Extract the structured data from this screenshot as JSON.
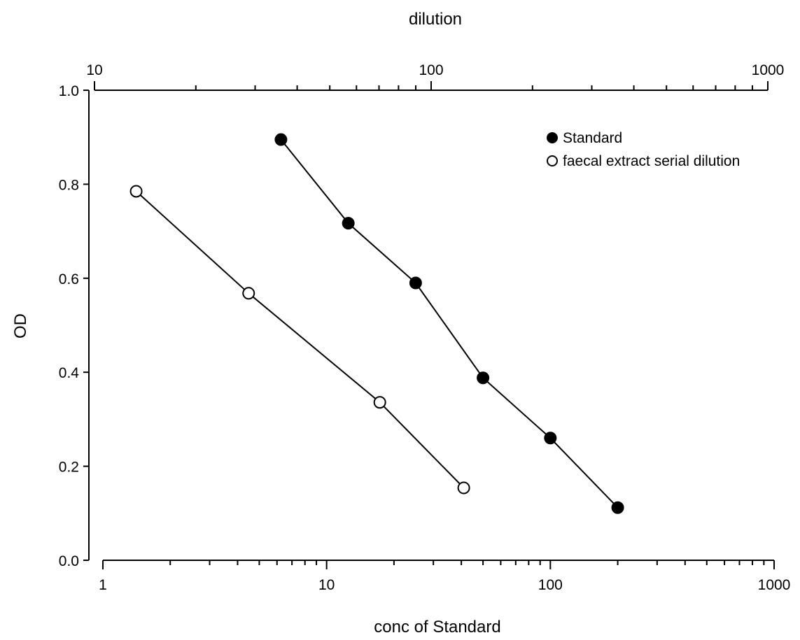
{
  "chart_data": {
    "type": "scatter",
    "title": "",
    "xlabel": "conc of Standard",
    "x2label": "dilution",
    "ylabel": "OD",
    "xscale": "log",
    "x2scale": "log",
    "xlim": [
      1,
      1000
    ],
    "x2lim": [
      10,
      1000
    ],
    "ylim": [
      0,
      1.0
    ],
    "xticks": [
      "1",
      "10",
      "100",
      "1000"
    ],
    "x2ticks": [
      "10",
      "100",
      "1000"
    ],
    "yticks": [
      "0.0",
      "0.2",
      "0.4",
      "0.6",
      "0.8",
      "1.0"
    ],
    "grid": false,
    "legend_position": "top-right",
    "series": [
      {
        "name": "Standard",
        "axis": "bottom",
        "marker": "filled-circle",
        "color": "#000000",
        "x": [
          6.25,
          12.5,
          25,
          50,
          100,
          200
        ],
        "y": [
          0.895,
          0.717,
          0.59,
          0.388,
          0.26,
          0.112
        ]
      },
      {
        "name": "faecal extract serial dilution",
        "axis": "top",
        "marker": "open-circle",
        "color": "#000000",
        "x": [
          13.3,
          28.7,
          70.4,
          125
        ],
        "y": [
          0.785,
          0.568,
          0.336,
          0.154
        ]
      }
    ]
  }
}
